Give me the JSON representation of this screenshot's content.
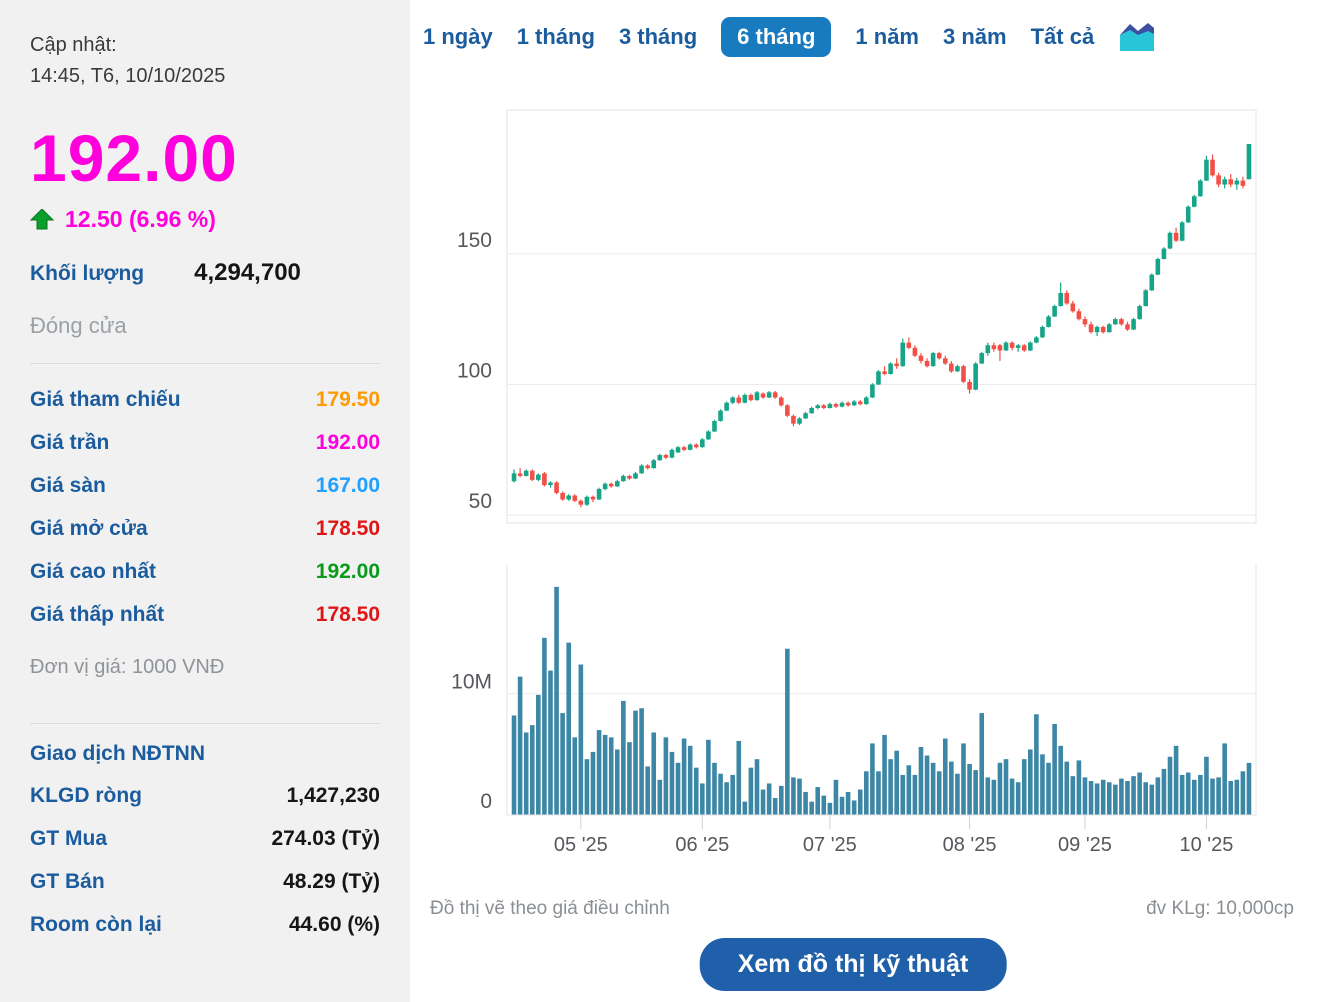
{
  "sidebar": {
    "updated_label": "Cập nhật:",
    "updated_time": "14:45, T6, 10/10/2025",
    "price": "192.00",
    "change": "12.50 (6.96 %)",
    "volume_label": "Khối lượng",
    "volume_value": "4,294,700",
    "session_label": "Đóng cửa",
    "price_rows": [
      {
        "label": "Giá tham chiếu",
        "value": "179.50",
        "color": "#FF9A00"
      },
      {
        "label": "Giá trần",
        "value": "192.00",
        "color": "#FF00DD"
      },
      {
        "label": "Giá sàn",
        "value": "167.00",
        "color": "#1FA0FF"
      },
      {
        "label": "Giá mở cửa",
        "value": "178.50",
        "color": "#E01616"
      },
      {
        "label": "Giá cao nhất",
        "value": "192.00",
        "color": "#089B19"
      },
      {
        "label": "Giá thấp nhất",
        "value": "178.50",
        "color": "#E01616"
      }
    ],
    "unit_note": "Đơn vị giá: 1000 VNĐ",
    "foreign_title": "Giao dịch NĐTNN",
    "foreign_rows": [
      {
        "label": "KLGD ròng",
        "value": "1,427,230"
      },
      {
        "label": "GT Mua",
        "value": "274.03 (Tỷ)"
      },
      {
        "label": "GT Bán",
        "value": "48.29 (Tỷ)"
      },
      {
        "label": "Room còn lại",
        "value": "44.60 (%)"
      }
    ]
  },
  "tabs": {
    "items": [
      "1 ngày",
      "1 tháng",
      "3 tháng",
      "6 tháng",
      "1 năm",
      "3 năm",
      "Tất cả"
    ],
    "active": "6 tháng",
    "icon": "area-chart-icon"
  },
  "icons": {
    "change_arrow": "up-arrow",
    "chart_type_icon": "area-chart"
  },
  "colors": {
    "accent_magenta": "#FF00DD",
    "tab_blue": "#1B5C9E",
    "active_tab_bg": "#187BC0",
    "button_bg": "#2060AB",
    "sidebar_bg": "#f1f1f2",
    "up_green_arrow": "#0A9E2C"
  },
  "footer": {
    "left_note": "Đồ thị vẽ theo giá điều chỉnh",
    "right_note": "đv KLg: 10,000cp",
    "button_label": "Xem đồ thị kỹ thuật"
  },
  "chart_data": [
    {
      "type": "candlestick",
      "title": "Adjusted price, 6 months (1000 VND)",
      "ylim": [
        47,
        205
      ],
      "yticks": [
        {
          "v": 50,
          "label": "50"
        },
        {
          "v": 100,
          "label": "100"
        },
        {
          "v": 150,
          "label": "150"
        }
      ],
      "xticks": [
        {
          "i": 11,
          "label": "05 '25"
        },
        {
          "i": 31,
          "label": "06 '25"
        },
        {
          "i": 52,
          "label": "07 '25"
        },
        {
          "i": 75,
          "label": "08 '25"
        },
        {
          "i": 94,
          "label": "09 '25"
        },
        {
          "i": 114,
          "label": "10 '25"
        }
      ],
      "up_color": "#17A589",
      "down_color": "#F25047",
      "grid": true,
      "ohlc": [
        [
          63,
          67.5,
          62.5,
          66
        ],
        [
          66,
          68,
          64.5,
          65
        ],
        [
          65,
          67.5,
          64.8,
          67
        ],
        [
          67,
          67.5,
          63,
          63.5
        ],
        [
          63.5,
          66,
          63,
          65.5
        ],
        [
          66,
          66.5,
          61,
          61.5
        ],
        [
          61.5,
          63,
          60.5,
          62.5
        ],
        [
          62.5,
          63,
          58,
          58.5
        ],
        [
          58.5,
          59,
          55.5,
          56
        ],
        [
          56,
          58,
          55.5,
          57.5
        ],
        [
          57.5,
          58,
          55,
          55.5
        ],
        [
          55.5,
          56,
          53,
          54
        ],
        [
          54,
          57.5,
          53.5,
          57
        ],
        [
          57,
          57.5,
          55,
          56
        ],
        [
          56,
          60.5,
          55.8,
          60
        ],
        [
          60,
          62.5,
          59.5,
          62
        ],
        [
          62,
          62.5,
          60.5,
          61
        ],
        [
          61,
          63.5,
          60.8,
          63
        ],
        [
          63,
          65.5,
          62.8,
          65
        ],
        [
          65,
          65.5,
          63.5,
          64
        ],
        [
          64,
          66.5,
          63.8,
          66
        ],
        [
          66,
          69.5,
          65.8,
          69
        ],
        [
          69,
          69.5,
          67.5,
          68
        ],
        [
          68,
          71.5,
          67.8,
          71
        ],
        [
          71,
          73.5,
          70.8,
          73
        ],
        [
          73,
          73.5,
          71.5,
          72
        ],
        [
          72,
          75.5,
          71.8,
          75
        ],
        [
          74,
          76.5,
          73.8,
          76
        ],
        [
          76,
          76.5,
          74.5,
          75
        ],
        [
          75,
          77.5,
          74.8,
          77
        ],
        [
          77,
          77.5,
          75.5,
          76
        ],
        [
          76,
          79.5,
          75.8,
          79
        ],
        [
          79,
          82.5,
          78.8,
          82
        ],
        [
          82,
          86.5,
          81.8,
          86
        ],
        [
          86,
          90.5,
          85.8,
          90
        ],
        [
          90,
          93.5,
          89.8,
          93
        ],
        [
          93,
          95.5,
          92.5,
          95
        ],
        [
          95,
          96,
          92.5,
          93
        ],
        [
          93,
          96.5,
          92.8,
          96
        ],
        [
          96,
          96.5,
          93.5,
          94
        ],
        [
          94,
          97.5,
          93.8,
          97
        ],
        [
          96.5,
          97,
          94.5,
          95
        ],
        [
          95,
          97.5,
          94.8,
          97
        ],
        [
          97,
          97.5,
          94.5,
          95
        ],
        [
          95,
          95.5,
          91.5,
          92
        ],
        [
          92,
          92.5,
          87.5,
          88
        ],
        [
          88,
          88.5,
          84,
          85
        ],
        [
          85,
          87.5,
          84.5,
          87
        ],
        [
          87,
          89.5,
          86.8,
          89
        ],
        [
          89,
          91.5,
          88.8,
          91
        ],
        [
          91,
          92.5,
          90.5,
          92
        ],
        [
          92,
          92.5,
          90.5,
          91
        ],
        [
          91,
          93,
          90.8,
          92.5
        ],
        [
          92.5,
          93,
          91,
          91.5
        ],
        [
          91.5,
          93.5,
          91.2,
          93
        ],
        [
          93,
          93.5,
          91.5,
          92
        ],
        [
          92,
          94,
          91.8,
          93.5
        ],
        [
          93.5,
          94,
          92,
          92.5
        ],
        [
          92.5,
          95.5,
          92.2,
          95
        ],
        [
          95,
          100.5,
          94.8,
          100
        ],
        [
          100,
          105.5,
          99.8,
          105
        ],
        [
          105,
          107,
          103.5,
          104
        ],
        [
          104,
          108.5,
          103.8,
          108
        ],
        [
          108,
          110,
          106,
          107
        ],
        [
          107,
          117.5,
          106.8,
          116
        ],
        [
          116,
          118,
          113.5,
          114
        ],
        [
          114,
          115,
          110.5,
          111
        ],
        [
          111,
          112,
          108,
          109
        ],
        [
          109,
          110,
          106.5,
          107
        ],
        [
          107,
          112.5,
          106.8,
          112
        ],
        [
          112,
          112.5,
          109.5,
          110
        ],
        [
          110,
          111,
          107.5,
          108
        ],
        [
          108,
          109,
          104.5,
          105
        ],
        [
          105,
          107.5,
          104.8,
          107
        ],
        [
          107,
          107.5,
          100.5,
          101
        ],
        [
          101,
          102,
          96.5,
          98
        ],
        [
          98,
          108.5,
          97.8,
          108
        ],
        [
          108,
          112.5,
          107.8,
          112
        ],
        [
          112,
          116,
          111,
          115
        ],
        [
          115,
          116,
          112.5,
          113.5
        ],
        [
          115,
          115.5,
          109,
          113
        ],
        [
          113,
          116.5,
          112.8,
          116
        ],
        [
          116,
          116.5,
          113,
          114
        ],
        [
          114,
          115.5,
          112.5,
          115
        ],
        [
          115,
          115.5,
          112.5,
          113
        ],
        [
          113,
          116.5,
          112.8,
          116
        ],
        [
          116,
          118.5,
          115.8,
          118
        ],
        [
          118,
          122.5,
          117.8,
          122
        ],
        [
          122,
          126.5,
          121.8,
          126
        ],
        [
          126,
          130.5,
          125.8,
          130
        ],
        [
          130,
          139,
          129.8,
          135
        ],
        [
          135,
          136,
          130.5,
          131
        ],
        [
          131,
          132,
          127.5,
          128
        ],
        [
          128,
          129,
          124.5,
          125
        ],
        [
          125,
          126,
          122,
          123
        ],
        [
          123,
          124,
          119.5,
          120
        ],
        [
          120,
          122.5,
          118.5,
          122
        ],
        [
          122,
          122.5,
          119.5,
          120
        ],
        [
          120,
          123.5,
          119.8,
          123
        ],
        [
          123,
          125.5,
          122.8,
          125
        ],
        [
          125,
          125.5,
          122.5,
          123
        ],
        [
          123,
          124,
          120.5,
          121
        ],
        [
          121,
          125.5,
          120.8,
          125
        ],
        [
          125,
          130.5,
          124.8,
          130
        ],
        [
          130,
          136.5,
          129.8,
          136
        ],
        [
          136,
          142.5,
          135.8,
          142
        ],
        [
          142,
          148.5,
          141.8,
          148
        ],
        [
          148,
          152.5,
          147.8,
          152
        ],
        [
          152,
          158.5,
          151.8,
          158
        ],
        [
          158,
          160,
          154.5,
          155
        ],
        [
          155,
          162.5,
          154.8,
          162
        ],
        [
          162,
          168.5,
          161.8,
          168
        ],
        [
          168,
          172.5,
          167.8,
          172
        ],
        [
          172,
          178.5,
          171.8,
          178
        ],
        [
          178,
          187.5,
          177.8,
          186
        ],
        [
          186,
          188,
          179.5,
          180
        ],
        [
          180,
          181,
          175.5,
          176.5
        ],
        [
          176.5,
          179.5,
          175,
          178.5
        ],
        [
          178.5,
          180.5,
          175.5,
          176.5
        ],
        [
          176.5,
          179,
          174.5,
          178
        ],
        [
          178,
          179.5,
          175,
          176
        ],
        [
          178.5,
          192,
          178.5,
          192
        ]
      ]
    },
    {
      "type": "bar",
      "title": "Volume (unit 10,000cp)",
      "ylim": [
        0,
        20.6
      ],
      "yticks": [
        {
          "v": 10,
          "label": "10M"
        },
        {
          "v": 0,
          "label": "0"
        }
      ],
      "color": "#3D87A6",
      "values": [
        8.2,
        11.4,
        6.8,
        7.4,
        9.9,
        14.6,
        11.9,
        18.8,
        8.4,
        14.2,
        6.4,
        12.4,
        4.6,
        5.2,
        7.0,
        6.6,
        6.4,
        5.4,
        9.4,
        6.0,
        8.6,
        8.8,
        4.0,
        6.8,
        2.9,
        6.4,
        5.2,
        4.3,
        6.3,
        5.7,
        3.9,
        2.6,
        6.2,
        4.3,
        3.4,
        2.7,
        3.3,
        6.1,
        1.1,
        3.9,
        4.6,
        2.1,
        2.6,
        1.4,
        2.4,
        13.7,
        3.1,
        3.0,
        1.9,
        1.1,
        2.3,
        1.6,
        1.0,
        2.9,
        1.5,
        1.9,
        1.2,
        2.1,
        3.6,
        5.9,
        3.6,
        6.6,
        4.6,
        5.3,
        3.3,
        4.1,
        3.3,
        5.6,
        4.9,
        4.3,
        3.6,
        6.3,
        4.4,
        3.4,
        5.9,
        4.2,
        3.7,
        8.4,
        3.1,
        2.9,
        4.3,
        4.6,
        3.0,
        2.7,
        4.6,
        5.4,
        8.3,
        5.0,
        4.3,
        7.5,
        5.7,
        4.4,
        3.2,
        4.5,
        3.1,
        2.8,
        2.6,
        2.9,
        2.7,
        2.5,
        3.0,
        2.8,
        3.2,
        3.5,
        2.7,
        2.5,
        3.1,
        3.8,
        4.8,
        5.7,
        3.3,
        3.5,
        2.9,
        3.3,
        4.8,
        3.0,
        3.1,
        5.9,
        2.8,
        2.9,
        3.6,
        4.2947
      ]
    }
  ]
}
